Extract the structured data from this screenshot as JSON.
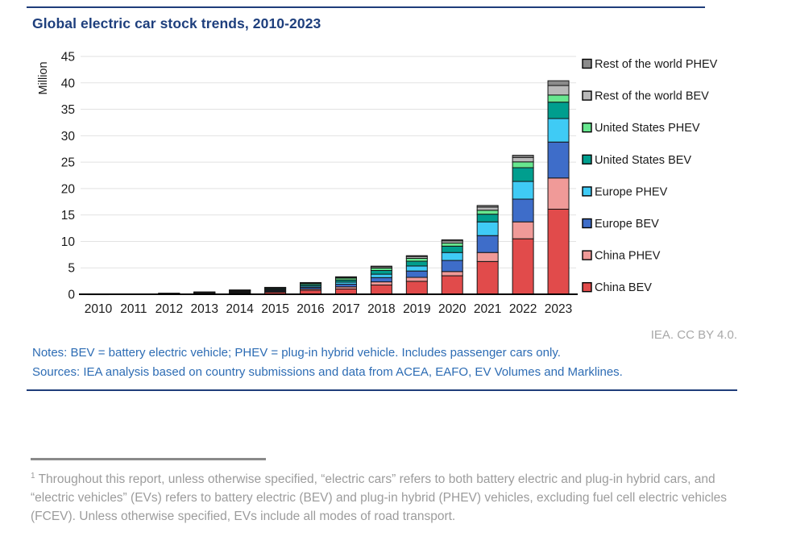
{
  "page": {
    "title": "Global electric car stock trends, 2010-2023",
    "credit": "IEA. CC BY 4.0.",
    "notes": "Notes: BEV = battery electric vehicle; PHEV = plug-in hybrid vehicle. Includes passenger cars only.",
    "sources": "Sources: IEA analysis based on country submissions and data from ACEA, EAFO, EV Volumes and Marklines.",
    "footnote_marker": "1",
    "footnote": "Throughout this report, unless otherwise specified, “electric cars” refers to both battery electric and plug-in hybrid cars, and “electric vehicles” (EVs) refers to battery electric (BEV) and plug-in hybrid (PHEV) vehicles, excluding fuel cell electric vehicles (FCEV). Unless otherwise specified, EVs include all modes of road transport.",
    "colors": {
      "title_blue": "#1e3f7d",
      "rule_blue": "#1f3d7a",
      "link_blue": "#2d6cb4",
      "credit_gray": "#a8a8a8",
      "footnote_gray": "#9c9c9c",
      "gridline": "#e2e2e2",
      "axis": "#000000",
      "segment_border": "#151515"
    }
  },
  "chart_data": {
    "type": "bar",
    "stacked": true,
    "title": "Global electric car stock trends, 2010-2023",
    "xlabel": "",
    "ylabel": "Million",
    "ylim": [
      0,
      45
    ],
    "ytick_step": 5,
    "grid": true,
    "legend_position": "right",
    "legend_order": "top item is last stacked series",
    "categories": [
      "2010",
      "2011",
      "2012",
      "2013",
      "2014",
      "2015",
      "2016",
      "2017",
      "2018",
      "2019",
      "2020",
      "2021",
      "2022",
      "2023"
    ],
    "units": "million vehicles",
    "series": [
      {
        "key": "china-bev",
        "name": "China BEV",
        "color": "#e14b4b",
        "values": [
          0.01,
          0.03,
          0.06,
          0.13,
          0.25,
          0.4,
          0.75,
          1.0,
          1.75,
          2.45,
          3.5,
          6.2,
          10.5,
          16.1
        ]
      },
      {
        "key": "china-phev",
        "name": "China PHEV",
        "color": "#f09a98",
        "values": [
          0.0,
          0.0,
          0.01,
          0.02,
          0.05,
          0.12,
          0.25,
          0.4,
          0.6,
          0.75,
          0.8,
          1.7,
          3.2,
          5.9
        ]
      },
      {
        "key": "europe-bev",
        "name": "Europe BEV",
        "color": "#3e6dc9",
        "values": [
          0.0,
          0.01,
          0.03,
          0.07,
          0.13,
          0.2,
          0.3,
          0.5,
          0.8,
          1.2,
          2.1,
          3.2,
          4.3,
          6.8
        ]
      },
      {
        "key": "europe-phev",
        "name": "Europe PHEV",
        "color": "#3fcbf5",
        "values": [
          0.0,
          0.0,
          0.01,
          0.03,
          0.08,
          0.15,
          0.25,
          0.4,
          0.65,
          0.95,
          1.5,
          2.6,
          3.35,
          4.45
        ]
      },
      {
        "key": "united-states-bev",
        "name": "United States BEV",
        "color": "#009e8e",
        "values": [
          0.0,
          0.01,
          0.03,
          0.08,
          0.14,
          0.18,
          0.28,
          0.4,
          0.7,
          0.9,
          1.2,
          1.45,
          2.6,
          3.1
        ]
      },
      {
        "key": "united-states-phev",
        "name": "United States PHEV",
        "color": "#67e78f",
        "values": [
          0.0,
          0.01,
          0.04,
          0.07,
          0.1,
          0.15,
          0.22,
          0.35,
          0.45,
          0.55,
          0.6,
          0.75,
          1.1,
          1.35
        ]
      },
      {
        "key": "rest-of-world-bev",
        "name": "Rest of the world BEV",
        "color": "#b9b9b9",
        "values": [
          0.01,
          0.01,
          0.02,
          0.03,
          0.05,
          0.08,
          0.12,
          0.18,
          0.25,
          0.35,
          0.4,
          0.6,
          0.85,
          1.8
        ]
      },
      {
        "key": "rest-of-world-phev",
        "name": "Rest of the world PHEV",
        "color": "#8b8b8b",
        "values": [
          0.0,
          0.0,
          0.0,
          0.01,
          0.02,
          0.03,
          0.05,
          0.08,
          0.12,
          0.15,
          0.2,
          0.3,
          0.4,
          0.9
        ]
      }
    ],
    "totals": [
      0.02,
      0.07,
      0.2,
      0.44,
      0.82,
      1.31,
      2.22,
      3.31,
      5.32,
      7.3,
      10.3,
      16.8,
      26.3,
      40.4
    ]
  }
}
